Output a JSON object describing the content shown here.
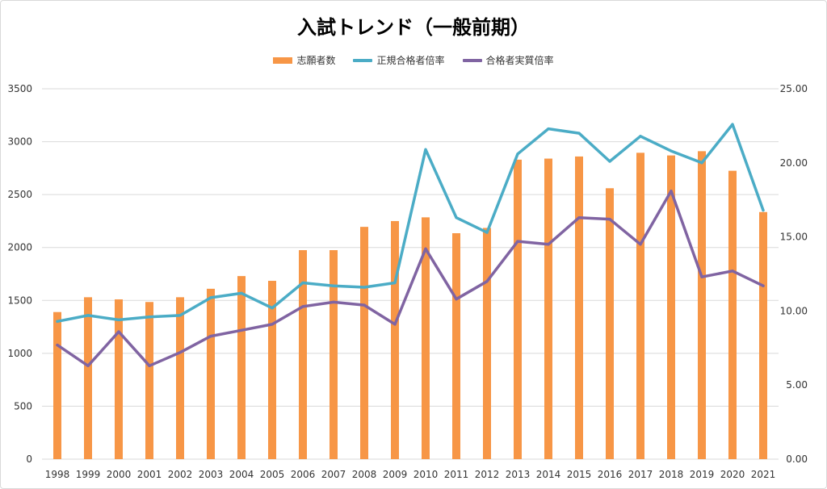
{
  "title": "入試トレンド（一般前期）",
  "colors": {
    "bar": "#F79646",
    "ratio_line": "#4BACC6",
    "actual_line": "#8064A2",
    "grid": "#d9d9d9"
  },
  "chart_data": {
    "type": "bar",
    "title": "入試トレンド（一般前期）",
    "legend_position": "top",
    "grid": true,
    "categories": [
      "1998",
      "1999",
      "2000",
      "2001",
      "2002",
      "2003",
      "2004",
      "2005",
      "2006",
      "2007",
      "2008",
      "2009",
      "2010",
      "2011",
      "2012",
      "2013",
      "2014",
      "2015",
      "2016",
      "2017",
      "2018",
      "2019",
      "2020",
      "2021"
    ],
    "y_left": {
      "ylim": [
        0,
        3500
      ],
      "ticks": [
        "0",
        "500",
        "1000",
        "1500",
        "2000",
        "2500",
        "3000",
        "3500"
      ]
    },
    "y_right": {
      "ylim": [
        0,
        25
      ],
      "ticks": [
        "0.00",
        "5.00",
        "10.00",
        "15.00",
        "20.00",
        "25.00"
      ]
    },
    "series": [
      {
        "name": "志願者数",
        "type": "bar",
        "axis": "left",
        "values": [
          1390,
          1530,
          1510,
          1485,
          1530,
          1610,
          1730,
          1685,
          1975,
          1975,
          2195,
          2250,
          2285,
          2135,
          2185,
          2830,
          2840,
          2860,
          2560,
          2895,
          2870,
          2910,
          2725,
          2335
        ]
      },
      {
        "name": "正規合格者倍率",
        "type": "line",
        "axis": "right",
        "values": [
          9.3,
          9.7,
          9.4,
          9.6,
          9.7,
          10.9,
          11.2,
          10.2,
          11.9,
          11.7,
          11.6,
          11.9,
          20.9,
          16.3,
          15.3,
          20.6,
          22.3,
          22.0,
          20.1,
          21.8,
          20.8,
          20.0,
          22.6,
          16.8
        ]
      },
      {
        "name": "合格者実質倍率",
        "type": "line",
        "axis": "right",
        "values": [
          7.7,
          6.3,
          8.6,
          6.3,
          7.2,
          8.3,
          8.7,
          9.1,
          10.3,
          10.6,
          10.4,
          9.1,
          14.2,
          10.8,
          12.0,
          14.7,
          14.5,
          16.3,
          16.2,
          14.5,
          18.1,
          12.3,
          12.7,
          11.7
        ]
      }
    ]
  }
}
